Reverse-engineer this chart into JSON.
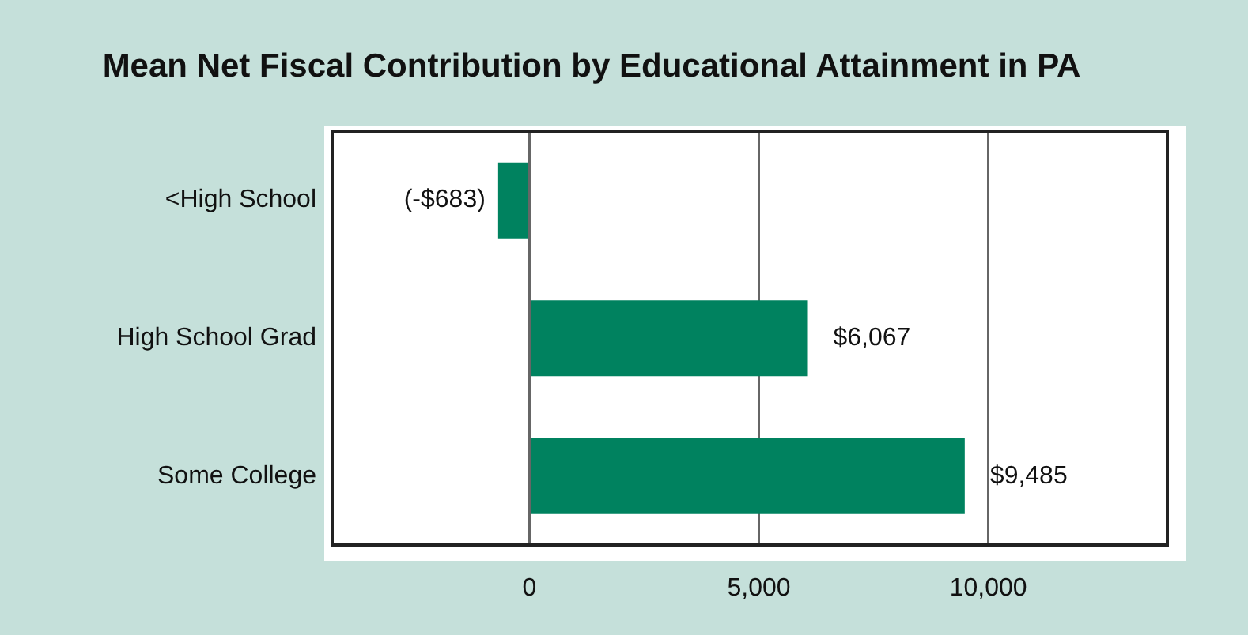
{
  "chart_data": {
    "type": "bar",
    "orientation": "horizontal",
    "title": "Mean Net Fiscal Contribution by Educational Attainment in PA",
    "categories": [
      "<High School",
      "High School Grad",
      "Some College"
    ],
    "values": [
      -683,
      6067,
      9485
    ],
    "color": "#00825f",
    "value_labels": [
      "(-$683)",
      "$6,067",
      "$9,485"
    ],
    "xlim": [
      -4300,
      13900
    ],
    "xticks": [
      {
        "value": 0,
        "label": "0"
      },
      {
        "value": 5000,
        "label": "5,000"
      },
      {
        "value": 10000,
        "label": "10,000"
      }
    ],
    "grid": "x",
    "legend": false
  }
}
